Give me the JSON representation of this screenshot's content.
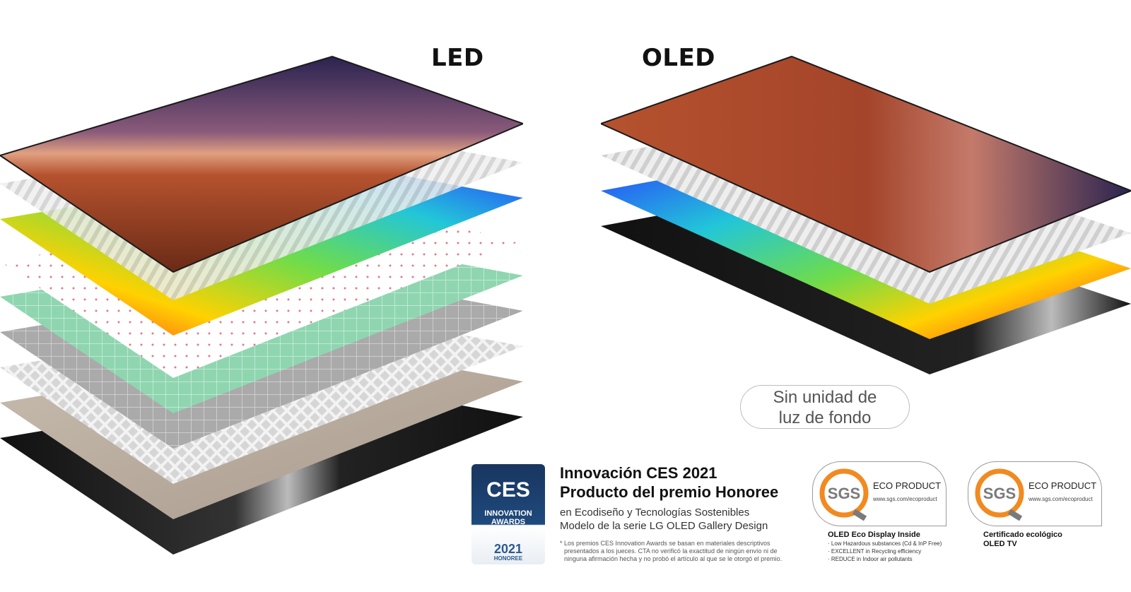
{
  "titles": {
    "led": "LED",
    "oled": "OLED"
  },
  "backlight_badge": {
    "line1": "Sin unidad de",
    "line2": "luz de fondo"
  },
  "ces": {
    "badge_logo": "CES",
    "badge_line1": "INNOVATION",
    "badge_line2": "AWARDS",
    "badge_year": "2021",
    "badge_honoree": "HONOREE",
    "heading1": "Innovación CES 2021",
    "heading2": "Producto del premio Honoree",
    "line1": "en Ecodiseño y Tecnologías Sostenibles",
    "line2": "Modelo de la serie LG OLED Gallery Design",
    "note1": "* Los premios CES Innovation Awards se basan en materiales descriptivos",
    "note2": "presentados a los jueces. CTA no verificó la exactitud de ningún envío ni de",
    "note3": "ninguna afirmación hecha y no probó el artículo al que se le otorgó el premio."
  },
  "sgs": [
    {
      "logo": "SGS",
      "title": "ECO PRODUCT",
      "url": "www.sgs.com/ecoproduct",
      "caption": "OLED Eco Display Inside",
      "items": [
        "· Low Hazardous substances (Cd & InP Free)",
        "· EXCELLENT in Recycling efficiency",
        "· REDUCE in Indoor air pollutants"
      ]
    },
    {
      "logo": "SGS",
      "title": "ECO PRODUCT",
      "url": "www.sgs.com/ecoproduct",
      "caption_line1": "Certificado ecológico",
      "caption_line2": "OLED TV"
    }
  ],
  "colors": {
    "sgs_orange": "#f18a21",
    "sgs_gray": "#7a7a7a",
    "ces_blue": "#1e4a7d",
    "desert": "#b5522e",
    "sky": "#2a2350"
  }
}
